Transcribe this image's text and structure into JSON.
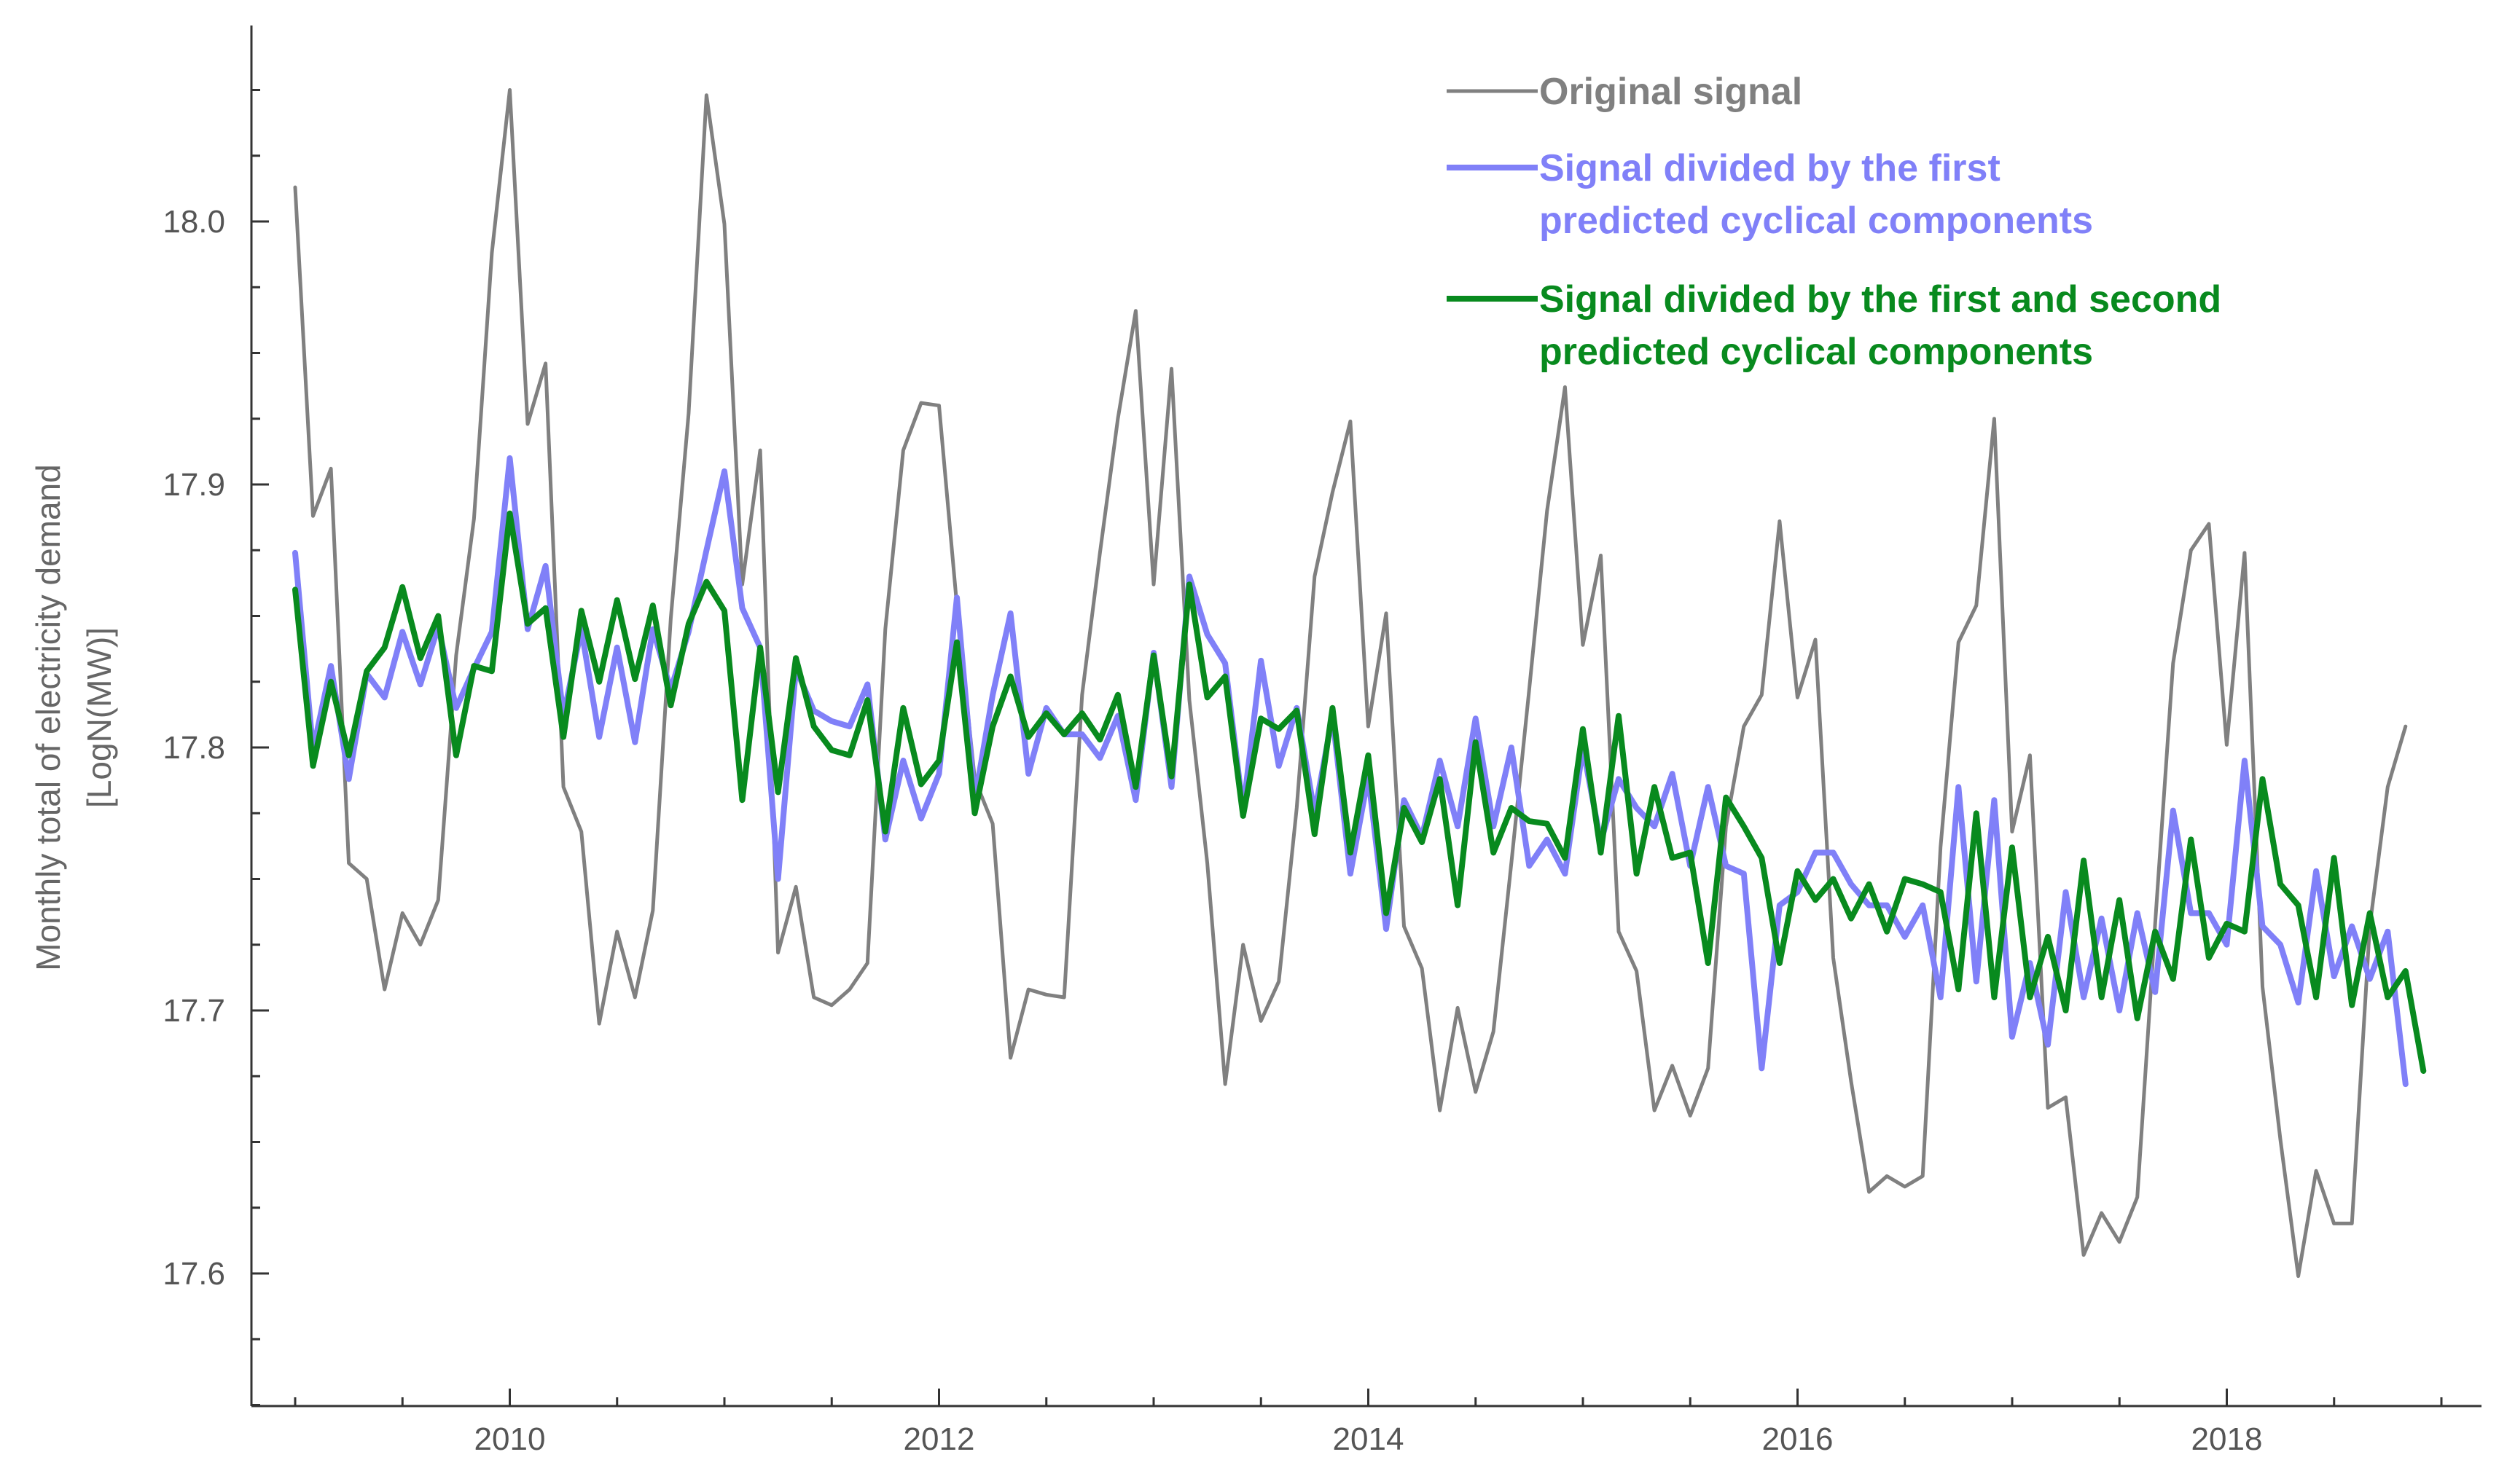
{
  "chart_data": {
    "type": "line",
    "ylabel": "Monthly total of electricity demand",
    "ylabel_unit": "[LogN(MW)]",
    "xlim": [
      2009.0,
      2019.0
    ],
    "ylim": [
      17.55,
      18.07
    ],
    "x_ticks": [
      2010,
      2012,
      2014,
      2016,
      2018
    ],
    "y_ticks": [
      17.6,
      17.7,
      17.8,
      17.9,
      18.0
    ],
    "x_start": 2009.0,
    "x_step": 0.08333,
    "grid": false,
    "legend_position": "top-right",
    "series": [
      {
        "name": "Original signal",
        "color": "#808080",
        "values": [
          18.013,
          17.888,
          17.906,
          17.756,
          17.75,
          17.708,
          17.737,
          17.725,
          17.742,
          17.835,
          17.887,
          17.988,
          18.05,
          17.923,
          17.946,
          17.785,
          17.768,
          17.695,
          17.73,
          17.705,
          17.738,
          17.849,
          17.927,
          18.048,
          17.999,
          17.862,
          17.913,
          17.722,
          17.747,
          17.705,
          17.702,
          17.708,
          17.718,
          17.845,
          17.913,
          17.931,
          17.93,
          17.854,
          17.788,
          17.771,
          17.682,
          17.708,
          17.706,
          17.705,
          17.82,
          17.874,
          17.925,
          17.966,
          17.862,
          17.944,
          17.818,
          17.756,
          17.672,
          17.725,
          17.696,
          17.711,
          17.777,
          17.865,
          17.897,
          17.924,
          17.808,
          17.851,
          17.732,
          17.716,
          17.662,
          17.701,
          17.669,
          17.692,
          17.756,
          17.822,
          17.89,
          17.937,
          17.839,
          17.873,
          17.73,
          17.715,
          17.662,
          17.679,
          17.66,
          17.678,
          17.77,
          17.808,
          17.82,
          17.886,
          17.819,
          17.841,
          17.72,
          17.673,
          17.631,
          17.637,
          17.633,
          17.637,
          17.762,
          17.84,
          17.854,
          17.925,
          17.768,
          17.797,
          17.663,
          17.667,
          17.607,
          17.623,
          17.612,
          17.629,
          17.733,
          17.832,
          17.875,
          17.885,
          17.801,
          17.874,
          17.709,
          17.651,
          17.599,
          17.639,
          17.619,
          17.619,
          17.732,
          17.785,
          17.808
        ]
      },
      {
        "name": "Signal divided by the first predicted cyclical components",
        "color": "#8080f8",
        "values": [
          17.874,
          17.799,
          17.831,
          17.788,
          17.828,
          17.819,
          17.844,
          17.824,
          17.846,
          17.815,
          17.83,
          17.844,
          17.91,
          17.845,
          17.869,
          17.812,
          17.845,
          17.804,
          17.838,
          17.802,
          17.845,
          17.822,
          17.844,
          17.875,
          17.905,
          17.853,
          17.838,
          17.75,
          17.83,
          17.814,
          17.81,
          17.808,
          17.824,
          17.765,
          17.795,
          17.773,
          17.79,
          17.857,
          17.78,
          17.82,
          17.851,
          17.79,
          17.815,
          17.805,
          17.805,
          17.796,
          17.812,
          17.78,
          17.836,
          17.785,
          17.865,
          17.843,
          17.832,
          17.776,
          17.833,
          17.793,
          17.815,
          17.775,
          17.812,
          17.752,
          17.789,
          17.731,
          17.78,
          17.766,
          17.795,
          17.77,
          17.811,
          17.77,
          17.8,
          17.755,
          17.765,
          17.752,
          17.8,
          17.764,
          17.788,
          17.777,
          17.77,
          17.79,
          17.755,
          17.785,
          17.755,
          17.752,
          17.678,
          17.74,
          17.745,
          17.76,
          17.76,
          17.748,
          17.74,
          17.74,
          17.728,
          17.74,
          17.705,
          17.785,
          17.711,
          17.78,
          17.69,
          17.718,
          17.687,
          17.745,
          17.705,
          17.735,
          17.7,
          17.737,
          17.707,
          17.776,
          17.737,
          17.737,
          17.725,
          17.795,
          17.732,
          17.725,
          17.703,
          17.753,
          17.713,
          17.732,
          17.712,
          17.73,
          17.672
        ]
      },
      {
        "name": "Signal divided by the first and second predicted cyclical components",
        "color": "#088a1e",
        "values": [
          17.86,
          17.793,
          17.825,
          17.797,
          17.829,
          17.838,
          17.861,
          17.834,
          17.85,
          17.797,
          17.831,
          17.829,
          17.889,
          17.847,
          17.853,
          17.804,
          17.852,
          17.825,
          17.856,
          17.826,
          17.854,
          17.816,
          17.847,
          17.863,
          17.852,
          17.78,
          17.838,
          17.783,
          17.834,
          17.808,
          17.799,
          17.797,
          17.818,
          17.768,
          17.815,
          17.786,
          17.795,
          17.84,
          17.775,
          17.808,
          17.827,
          17.804,
          17.813,
          17.805,
          17.813,
          17.803,
          17.82,
          17.785,
          17.835,
          17.789,
          17.862,
          17.819,
          17.827,
          17.774,
          17.811,
          17.807,
          17.814,
          17.767,
          17.815,
          17.76,
          17.797,
          17.737,
          17.777,
          17.764,
          17.788,
          17.74,
          17.802,
          17.76,
          17.777,
          17.772,
          17.771,
          17.758,
          17.807,
          17.76,
          17.812,
          17.752,
          17.785,
          17.758,
          17.76,
          17.718,
          17.781,
          17.77,
          17.758,
          17.718,
          17.753,
          17.742,
          17.75,
          17.735,
          17.748,
          17.73,
          17.75,
          17.748,
          17.745,
          17.708,
          17.775,
          17.705,
          17.762,
          17.705,
          17.728,
          17.7,
          17.757,
          17.705,
          17.742,
          17.697,
          17.73,
          17.712,
          17.765,
          17.72,
          17.733,
          17.73,
          17.788,
          17.748,
          17.74,
          17.705,
          17.758,
          17.702,
          17.737,
          17.705,
          17.715,
          17.677
        ]
      }
    ]
  }
}
